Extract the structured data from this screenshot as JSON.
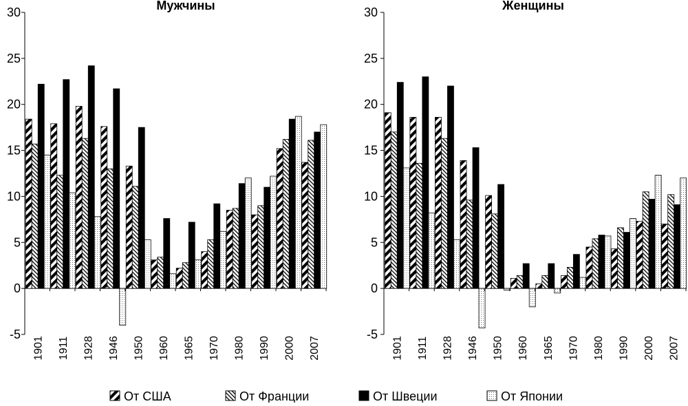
{
  "chart_data": [
    {
      "type": "bar",
      "title": "Мужчины",
      "categories": [
        "1901",
        "1911",
        "1928",
        "1946",
        "1950",
        "1960",
        "1965",
        "1970",
        "1980",
        "1990",
        "2000",
        "2007"
      ],
      "ylim": [
        -5,
        30
      ],
      "yticks": [
        "-5",
        "0",
        "5",
        "10",
        "15",
        "20",
        "25",
        "30"
      ],
      "series": [
        {
          "name": "От США",
          "values": [
            18.4,
            17.9,
            19.8,
            17.6,
            13.3,
            3.1,
            2.2,
            4.0,
            8.5,
            8.0,
            15.2,
            13.7
          ]
        },
        {
          "name": "От Франции",
          "values": [
            15.7,
            12.3,
            16.3,
            13.0,
            11.1,
            3.4,
            2.8,
            5.3,
            8.7,
            9.0,
            16.2,
            16.1
          ]
        },
        {
          "name": "От Швеции",
          "values": [
            22.2,
            22.7,
            24.2,
            21.7,
            17.5,
            7.6,
            7.2,
            9.2,
            11.4,
            11.0,
            18.4,
            17.0
          ]
        },
        {
          "name": "От Японии",
          "values": [
            14.5,
            10.4,
            7.8,
            -4.0,
            5.3,
            1.6,
            3.1,
            6.2,
            12.0,
            12.2,
            18.7,
            17.8
          ]
        }
      ]
    },
    {
      "type": "bar",
      "title": "Женщины",
      "categories": [
        "1901",
        "1911",
        "1928",
        "1946",
        "1950",
        "1960",
        "1965",
        "1970",
        "1980",
        "1990",
        "2000",
        "2007"
      ],
      "ylim": [
        -5,
        30
      ],
      "yticks": [
        "-5",
        "0",
        "5",
        "10",
        "15",
        "20",
        "25",
        "30"
      ],
      "series": [
        {
          "name": "От США",
          "values": [
            19.1,
            18.6,
            18.6,
            13.9,
            10.1,
            1.1,
            0.5,
            1.4,
            4.5,
            4.3,
            7.3,
            7.0
          ]
        },
        {
          "name": "От Франции",
          "values": [
            17.0,
            13.6,
            16.3,
            9.6,
            8.1,
            1.4,
            1.4,
            2.3,
            5.4,
            6.6,
            10.5,
            10.2
          ]
        },
        {
          "name": "От Швеции",
          "values": [
            22.4,
            23.0,
            22.0,
            15.3,
            11.3,
            2.7,
            2.7,
            3.7,
            5.8,
            6.1,
            9.7,
            9.1
          ]
        },
        {
          "name": "От Японии",
          "values": [
            13.1,
            8.2,
            5.3,
            -4.3,
            -0.2,
            -2.0,
            -0.5,
            1.2,
            5.7,
            7.6,
            12.3,
            12.0
          ]
        }
      ]
    }
  ],
  "legend": [
    {
      "label": "От США",
      "pattern": "diag-thick"
    },
    {
      "label": "От Франции",
      "pattern": "diag-thin"
    },
    {
      "label": "От Швеции",
      "pattern": "solid"
    },
    {
      "label": "От Японии",
      "pattern": "dots"
    }
  ]
}
